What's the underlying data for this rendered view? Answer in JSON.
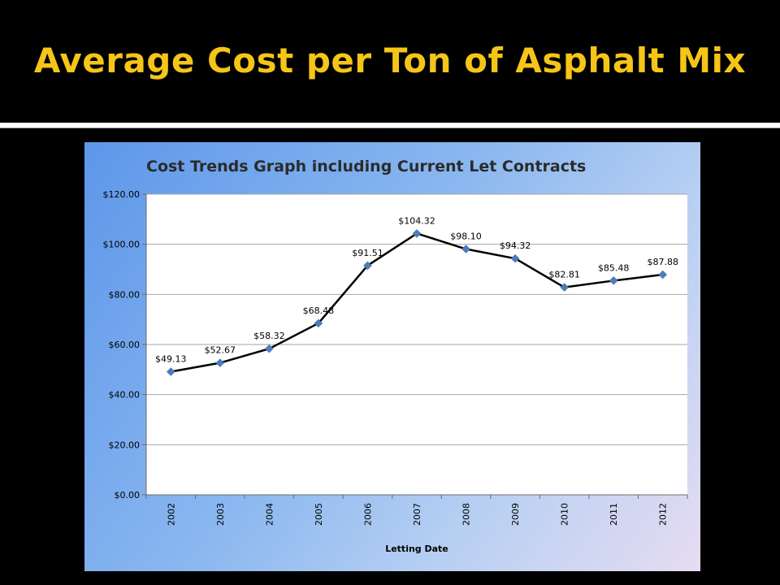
{
  "slide": {
    "title": "Average Cost per Ton of Asphalt Mix"
  },
  "chart_data": {
    "type": "line",
    "title": "Cost Trends Graph including Current Let Contracts",
    "xlabel": "Letting Date",
    "ylabel": "",
    "categories": [
      "2002",
      "2003",
      "2004",
      "2005",
      "2006",
      "2007",
      "2008",
      "2009",
      "2010",
      "2011",
      "2012"
    ],
    "series": [
      {
        "values": [
          49.13,
          52.67,
          58.32,
          68.48,
          91.51,
          104.32,
          98.1,
          94.32,
          82.81,
          85.48,
          87.88
        ],
        "labels": [
          "$49.13",
          "$52.67",
          "$58.32",
          "$68.48",
          "$91.51",
          "$104.32",
          "$98.10",
          "$94.32",
          "$82.81",
          "$85.48",
          "$87.88"
        ]
      }
    ],
    "ylim": [
      0,
      120
    ],
    "yticks": [
      0,
      20,
      40,
      60,
      80,
      100,
      120
    ],
    "ytick_labels": [
      "$0.00",
      "$20.00",
      "$40.00",
      "$60.00",
      "$80.00",
      "$100.00",
      "$120.00"
    ],
    "grid": true,
    "legend": "none",
    "colors": {
      "line": "#000000",
      "marker": "#4a7ebb",
      "plot_bg": "#ffffff",
      "grid": "#a6a6a6"
    }
  }
}
